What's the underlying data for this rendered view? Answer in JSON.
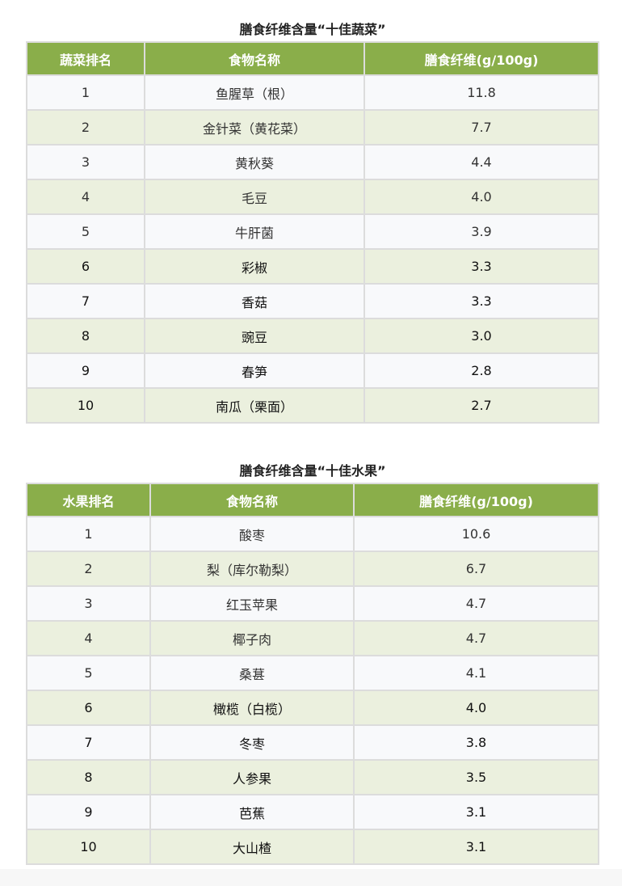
{
  "veg": {
    "title": "膳食纤维含量“十佳蔬菜”",
    "headers": [
      "蔬菜排名",
      "食物名称",
      "膳食纤维(g/100g)"
    ],
    "rows": [
      [
        "1",
        "鱼腥草（根）",
        "11.8"
      ],
      [
        "2",
        "金针菜（黄花菜）",
        "7.7"
      ],
      [
        "3",
        "黄秋葵",
        "4.4"
      ],
      [
        "4",
        "毛豆",
        "4.0"
      ],
      [
        "5",
        "牛肝菌",
        "3.9"
      ],
      [
        "6",
        "彩椒",
        "3.3"
      ],
      [
        "7",
        "香菇",
        "3.3"
      ],
      [
        "8",
        "豌豆",
        "3.0"
      ],
      [
        "9",
        "春笋",
        "2.8"
      ],
      [
        "10",
        "南瓜（栗面）",
        "2.7"
      ]
    ]
  },
  "fruit": {
    "title": "膳食纤维含量“十佳水果”",
    "headers": [
      "水果排名",
      "食物名称",
      "膳食纤维(g/100g)"
    ],
    "rows": [
      [
        "1",
        "酸枣",
        "10.6"
      ],
      [
        "2",
        "梨（库尔勒梨）",
        "6.7"
      ],
      [
        "3",
        "红玉苹果",
        "4.7"
      ],
      [
        "4",
        "椰子肉",
        "4.7"
      ],
      [
        "5",
        "桑葚",
        "4.1"
      ],
      [
        "6",
        "橄榄（白榄）",
        "4.0"
      ],
      [
        "7",
        "冬枣",
        "3.8"
      ],
      [
        "8",
        "人参果",
        "3.5"
      ],
      [
        "9",
        "芭蕉",
        "3.1"
      ],
      [
        "10",
        "大山楂",
        "3.1"
      ]
    ]
  },
  "colors": {
    "header": "#8aae4a",
    "row_even": "#ebf0de",
    "row_odd": "#f8f9fb"
  }
}
